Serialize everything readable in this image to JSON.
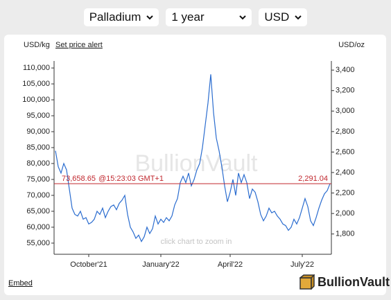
{
  "controls": [
    "Palladium",
    "1 year",
    "USD"
  ],
  "chart_data": {
    "type": "line",
    "y_label": "USD/kg",
    "y2_label": "USD/oz",
    "price_alert": "Set price alert",
    "watermark": "BullionVault",
    "hint": "click chart to zoom in",
    "categories": [
      null,
      null,
      null,
      null,
      null,
      null,
      null,
      null,
      null,
      null,
      null,
      null,
      "October'21",
      null,
      null,
      null,
      null,
      null,
      null,
      null,
      null,
      null,
      null,
      null,
      null,
      null,
      null,
      null,
      null,
      null,
      null,
      null,
      null,
      null,
      null,
      null,
      null,
      null,
      "January'22",
      null,
      null,
      null,
      null,
      null,
      null,
      null,
      null,
      null,
      null,
      null,
      null,
      null,
      null,
      null,
      null,
      null,
      null,
      null,
      null,
      null,
      null,
      null,
      null,
      "April'22",
      null,
      null,
      null,
      null,
      null,
      null,
      null,
      null,
      null,
      null,
      null,
      null,
      null,
      null,
      null,
      null,
      null,
      null,
      null,
      null,
      null,
      null,
      null,
      null,
      null,
      "July'22",
      null,
      null,
      null,
      null,
      null,
      null,
      null,
      null,
      null,
      null
    ],
    "series": [
      {
        "name": "Palladium",
        "color": "#2a6ccf",
        "values": [
          84000,
          79000,
          77000,
          80000,
          78000,
          72000,
          66000,
          64000,
          63500,
          65000,
          62500,
          63000,
          61000,
          61500,
          62500,
          65000,
          64000,
          66000,
          63000,
          65000,
          66500,
          67000,
          65500,
          67500,
          68500,
          70000,
          64000,
          60000,
          58500,
          56500,
          57500,
          55500,
          57000,
          60000,
          58000,
          59500,
          63500,
          61000,
          62500,
          61500,
          63000,
          62000,
          63500,
          67000,
          69000,
          74000,
          76000,
          74000,
          77000,
          73000,
          75000,
          78000,
          80000,
          85000,
          92000,
          99000,
          108000,
          96000,
          88000,
          84000,
          79000,
          73000,
          68000,
          71000,
          75000,
          70000,
          77000,
          74000,
          76500,
          74000,
          69000,
          72000,
          71000,
          68000,
          64000,
          62000,
          63500,
          66000,
          64500,
          65000,
          63500,
          62500,
          61000,
          60500,
          59000,
          60000,
          62500,
          61000,
          63000,
          66000,
          69000,
          66500,
          62000,
          60500,
          63000,
          66000,
          68500,
          70500,
          71500,
          73658.65
        ]
      }
    ],
    "current": {
      "value": 73658.65,
      "label": "73,658.65",
      "time": "@15:23:03 GMT+1",
      "value_y2": 2291.04,
      "label_y2": "2,291.04",
      "color": "#c0262d"
    },
    "ylim": [
      51500,
      112200
    ],
    "yticks": [
      {
        "value": 55000,
        "label": "55,000"
      },
      {
        "value": 60000,
        "label": "60,000"
      },
      {
        "value": 65000,
        "label": "65,000"
      },
      {
        "value": 70000,
        "label": "70,000"
      },
      {
        "value": 75000,
        "label": "75,000"
      },
      {
        "value": 80000,
        "label": "80,000"
      },
      {
        "value": 85000,
        "label": "85,000"
      },
      {
        "value": 90000,
        "label": "90,000"
      },
      {
        "value": 95000,
        "label": "95,000"
      },
      {
        "value": 100000,
        "label": "100,000"
      },
      {
        "value": 105000,
        "label": "105,000"
      },
      {
        "value": 110000,
        "label": "110,000"
      }
    ],
    "y2lim": [
      1602,
      3489
    ],
    "y2ticks": [
      {
        "value": 1800,
        "label": "1,800"
      },
      {
        "value": 2000,
        "label": "2,000"
      },
      {
        "value": 2200,
        "label": "2,200"
      },
      {
        "value": 2400,
        "label": "2,400"
      },
      {
        "value": 2600,
        "label": "2,600"
      },
      {
        "value": 2800,
        "label": "2,800"
      },
      {
        "value": 3000,
        "label": "3,000"
      },
      {
        "value": 3200,
        "label": "3,200"
      },
      {
        "value": 3400,
        "label": "3,400"
      }
    ]
  },
  "footer": {
    "embed": "Embed",
    "brand": "BullionVault"
  }
}
